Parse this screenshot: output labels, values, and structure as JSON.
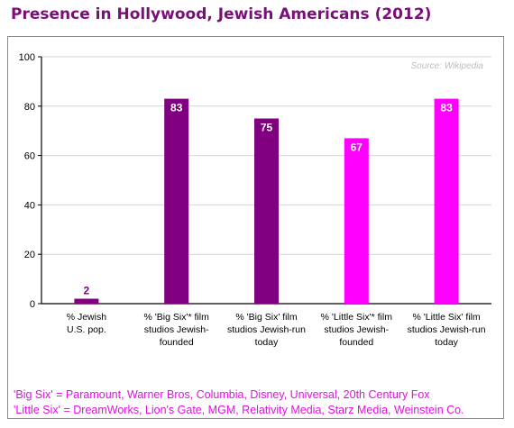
{
  "title": "Presence in Hollywood, Jewish Americans (2012)",
  "source": "Source: Wikipedia",
  "footnotes": [
    "'Big Six' = Paramount, Warner Bros, Columbia, Disney, Universal, 20th Century Fox",
    "'Little Six' = DreamWorks, Lion's Gate, MGM, Relativity Media, Starz Media, Weinstein Co."
  ],
  "colors": {
    "title": "#7a0f7a",
    "big_six_bar": "#800080",
    "little_six_bar": "#ff00ff",
    "footnote": "#e010e0"
  },
  "chart_data": {
    "type": "bar",
    "title": "Presence in Hollywood, Jewish Americans (2012)",
    "xlabel": "",
    "ylabel": "",
    "ylim": [
      0,
      100
    ],
    "yticks": [
      0,
      20,
      40,
      60,
      80,
      100
    ],
    "grid": true,
    "legend": "none",
    "categories": [
      [
        "% Jewish",
        "U.S. pop."
      ],
      [
        "% 'Big Six'* film",
        "studios Jewish-",
        "founded"
      ],
      [
        "% 'Big Six' film",
        "studios Jewish-run",
        "today"
      ],
      [
        "% 'Little Six'* film",
        "studios Jewish-",
        "founded"
      ],
      [
        "% 'Little Six' film",
        "studios Jewish-run",
        "today"
      ]
    ],
    "values": [
      2,
      83,
      75,
      67,
      83
    ],
    "bar_colors": [
      "#800080",
      "#800080",
      "#800080",
      "#ff00ff",
      "#ff00ff"
    ]
  }
}
